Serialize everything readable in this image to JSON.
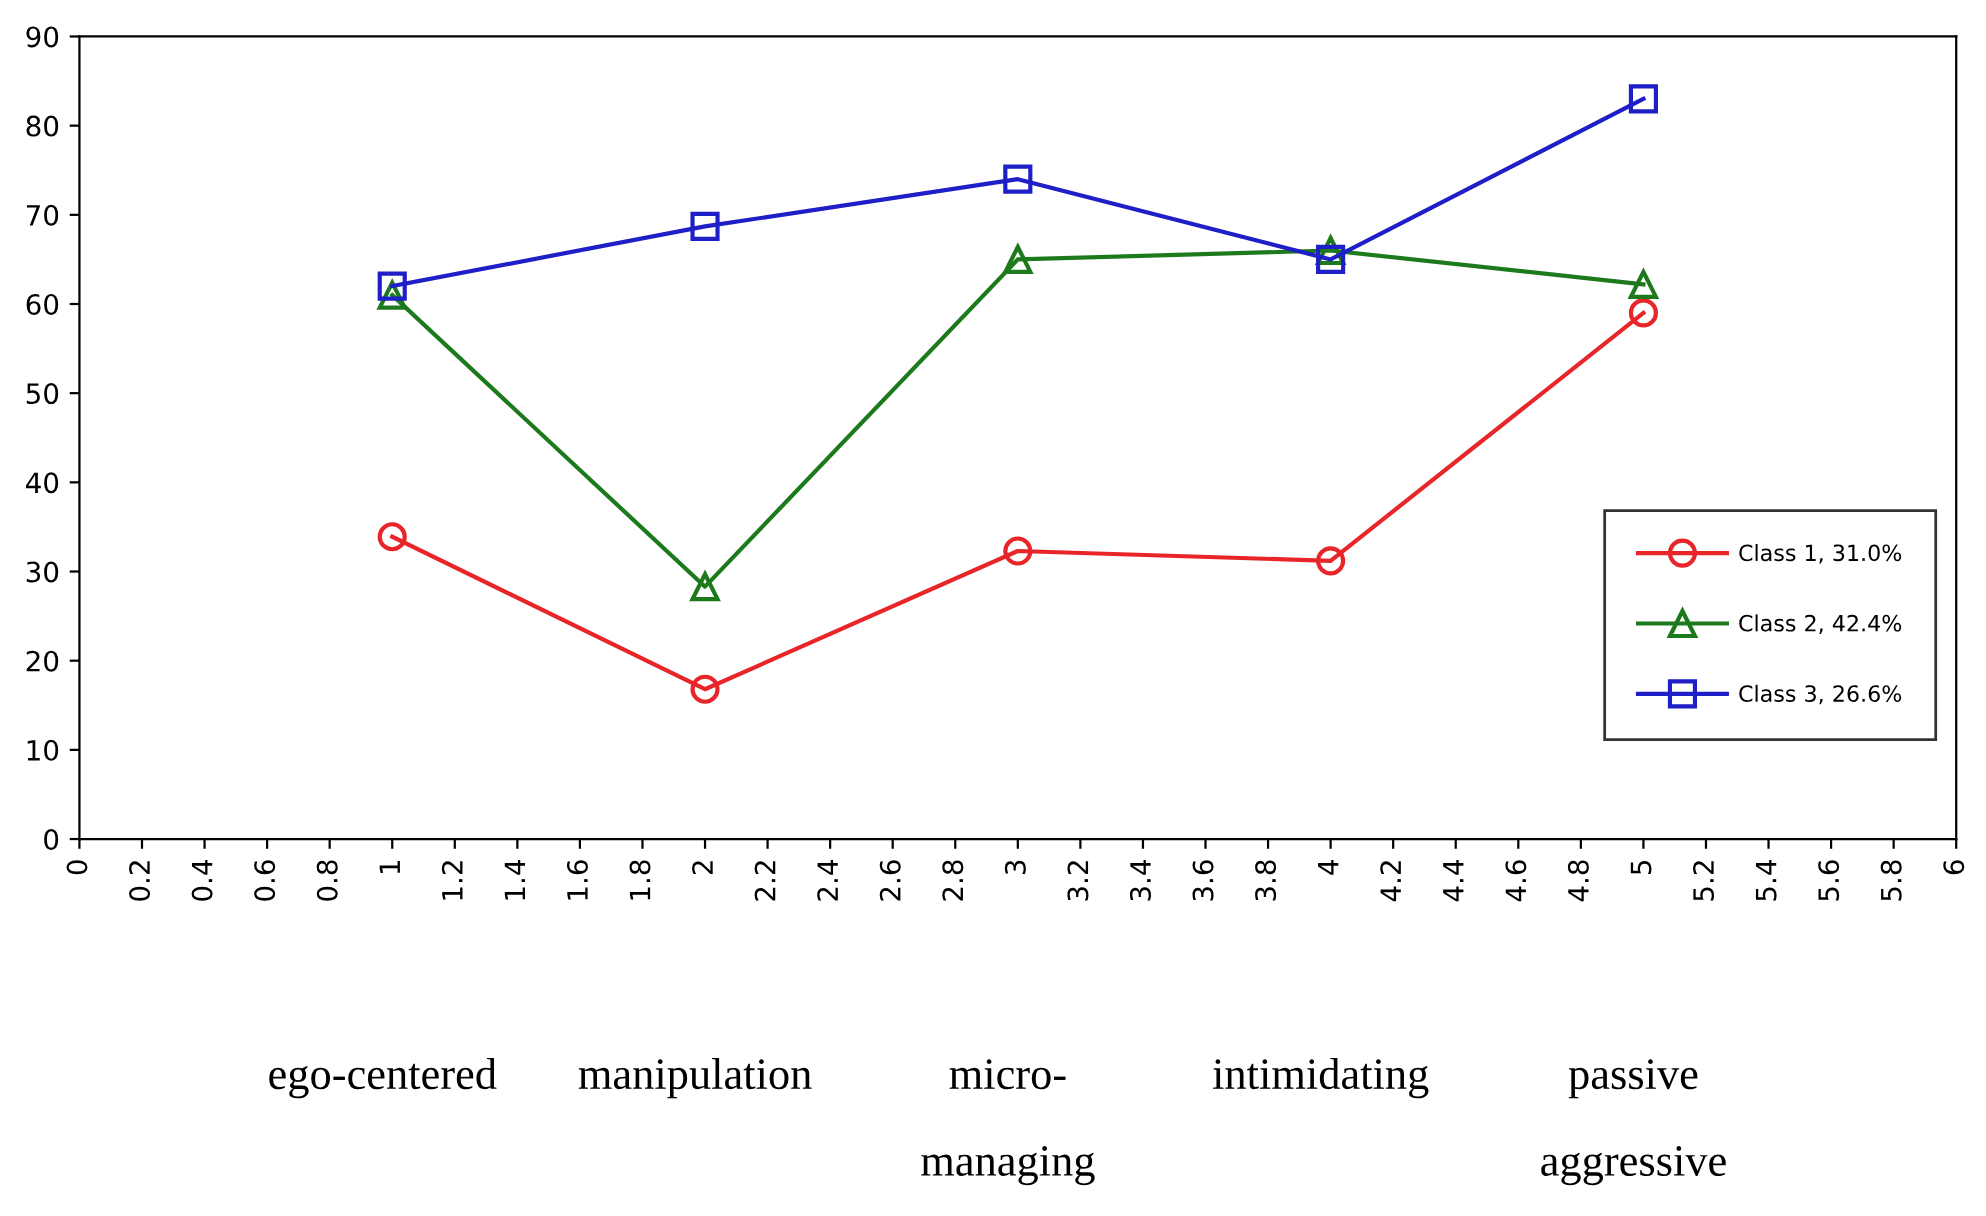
{
  "chart_data": {
    "type": "line",
    "x": [
      1,
      2,
      3,
      4,
      5
    ],
    "series": [
      {
        "name": "Class 1, 31.0%",
        "color": "#e8262a",
        "marker": "circle",
        "values": [
          33.9,
          16.8,
          32.3,
          31.2,
          59
        ]
      },
      {
        "name": "Class 2, 42.4%",
        "color": "#1c7a1c",
        "marker": "triangle",
        "values": [
          61,
          28.3,
          65,
          66,
          62.2
        ]
      },
      {
        "name": "Class 3, 26.6%",
        "color": "#1f1fc8",
        "marker": "square",
        "values": [
          62,
          68.7,
          74,
          65,
          83
        ]
      }
    ],
    "xlim": [
      0,
      6
    ],
    "xticks": [
      0,
      0.2,
      0.4,
      0.6,
      0.8,
      1,
      1.2,
      1.4,
      1.6,
      1.8,
      2,
      2.2,
      2.4,
      2.6,
      2.8,
      3,
      3.2,
      3.4,
      3.6,
      3.8,
      4,
      4.2,
      4.4,
      4.6,
      4.8,
      5,
      5.2,
      5.4,
      5.6,
      5.8,
      6
    ],
    "ylim": [
      0,
      90
    ],
    "yticks": [
      0,
      10,
      20,
      30,
      40,
      50,
      60,
      70,
      80,
      90
    ],
    "grid": false,
    "legend": "bottom right",
    "line_style": "solid",
    "annotations": [
      "ego-centered",
      "manipulation",
      "micro-\n\nmanaging",
      "intimidating",
      "passive\n\naggressive"
    ]
  }
}
